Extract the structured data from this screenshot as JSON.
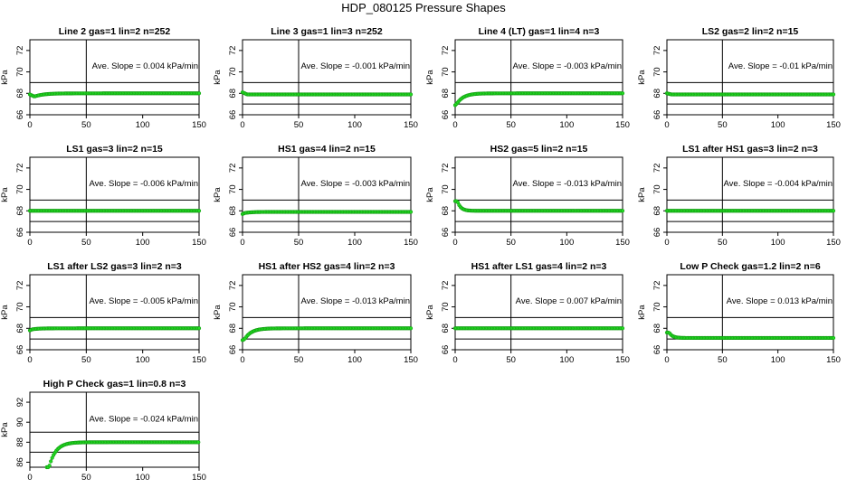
{
  "figure_title": "HDP_080125  Pressure Shapes",
  "chart_data": [
    {
      "type": "scatter",
      "title": "Line 2 gas=1 lin=2 n=252",
      "ylabel": "kPa",
      "xlim": [
        0,
        150
      ],
      "ylim": [
        66,
        73
      ],
      "yticks": [
        66,
        68,
        70,
        72
      ],
      "xticks": [
        0,
        50,
        100,
        150
      ],
      "hlines": [
        67,
        69
      ],
      "vline": 50,
      "annotation": "Ave. Slope = 0.004  kPa/min",
      "series": [
        {
          "name": "pressure",
          "shape": "dip",
          "start": 67.9,
          "base": 67.7,
          "end": 68.0,
          "x": [
            0,
            150
          ]
        }
      ]
    },
    {
      "type": "scatter",
      "title": "Line 3 gas=1 lin=3 n=252",
      "ylabel": "kPa",
      "xlim": [
        0,
        150
      ],
      "ylim": [
        66,
        73
      ],
      "yticks": [
        66,
        68,
        70,
        72
      ],
      "xticks": [
        0,
        50,
        100,
        150
      ],
      "hlines": [
        67,
        69
      ],
      "vline": 50,
      "annotation": "Ave. Slope = -0.001  kPa/min",
      "series": [
        {
          "name": "pressure",
          "shape": "flat",
          "start": 68.1,
          "base": 67.9,
          "end": 67.9,
          "x": [
            0,
            150
          ]
        }
      ]
    },
    {
      "type": "scatter",
      "title": "Line 4 (LT) gas=1 lin=4 n=3",
      "ylabel": "kPa",
      "xlim": [
        0,
        150
      ],
      "ylim": [
        66,
        73
      ],
      "yticks": [
        66,
        68,
        70,
        72
      ],
      "xticks": [
        0,
        50,
        100,
        150
      ],
      "hlines": [
        67,
        69
      ],
      "vline": 50,
      "annotation": "Ave. Slope = -0.003  kPa/min",
      "series": [
        {
          "name": "pressure",
          "shape": "rise",
          "start": 66.9,
          "base": 67.1,
          "end": 68.0,
          "x": [
            0,
            150
          ]
        }
      ]
    },
    {
      "type": "scatter",
      "title": "LS2 gas=2 lin=2 n=15",
      "ylabel": "kPa",
      "xlim": [
        0,
        150
      ],
      "ylim": [
        66,
        73
      ],
      "yticks": [
        66,
        68,
        70,
        72
      ],
      "xticks": [
        0,
        50,
        100,
        150
      ],
      "hlines": [
        67,
        69
      ],
      "vline": 50,
      "annotation": "Ave. Slope = -0.01  kPa/min",
      "series": [
        {
          "name": "pressure",
          "shape": "flat",
          "start": 68.0,
          "base": 68.0,
          "end": 67.9,
          "x": [
            0,
            150
          ]
        }
      ]
    },
    {
      "type": "scatter",
      "title": "LS1 gas=3 lin=2 n=15",
      "ylabel": "kPa",
      "xlim": [
        0,
        150
      ],
      "ylim": [
        66,
        73
      ],
      "yticks": [
        66,
        68,
        70,
        72
      ],
      "xticks": [
        0,
        50,
        100,
        150
      ],
      "hlines": [
        67,
        69
      ],
      "vline": 50,
      "annotation": "Ave. Slope = -0.006  kPa/min",
      "series": [
        {
          "name": "pressure",
          "shape": "flat",
          "start": 68.0,
          "base": 68.0,
          "end": 68.0,
          "x": [
            0,
            150
          ]
        }
      ]
    },
    {
      "type": "scatter",
      "title": "HS1 gas=4 lin=2 n=15",
      "ylabel": "kPa",
      "xlim": [
        0,
        150
      ],
      "ylim": [
        66,
        73
      ],
      "yticks": [
        66,
        68,
        70,
        72
      ],
      "xticks": [
        0,
        50,
        100,
        150
      ],
      "hlines": [
        67,
        69
      ],
      "vline": 50,
      "annotation": "Ave. Slope = -0.003  kPa/min",
      "series": [
        {
          "name": "pressure",
          "shape": "rise",
          "start": 67.7,
          "base": 67.8,
          "end": 67.9,
          "x": [
            0,
            150
          ]
        }
      ]
    },
    {
      "type": "scatter",
      "title": "HS2 gas=5 lin=2 n=15",
      "ylabel": "kPa",
      "xlim": [
        0,
        150
      ],
      "ylim": [
        66,
        73
      ],
      "yticks": [
        66,
        68,
        70,
        72
      ],
      "xticks": [
        0,
        50,
        100,
        150
      ],
      "hlines": [
        67,
        69
      ],
      "vline": 50,
      "annotation": "Ave. Slope = -0.013  kPa/min",
      "series": [
        {
          "name": "pressure",
          "shape": "fall",
          "start": 68.9,
          "base": 68.9,
          "end": 68.0,
          "x": [
            0,
            150
          ]
        }
      ]
    },
    {
      "type": "scatter",
      "title": "LS1 after HS1 gas=3 lin=2 n=3",
      "ylabel": "kPa",
      "xlim": [
        0,
        150
      ],
      "ylim": [
        66,
        73
      ],
      "yticks": [
        66,
        68,
        70,
        72
      ],
      "xticks": [
        0,
        50,
        100,
        150
      ],
      "hlines": [
        67,
        69
      ],
      "vline": 50,
      "annotation": "Ave. Slope = -0.004  kPa/min",
      "series": [
        {
          "name": "pressure",
          "shape": "flat",
          "start": 68.0,
          "base": 68.0,
          "end": 68.0,
          "x": [
            0,
            150
          ]
        }
      ]
    },
    {
      "type": "scatter",
      "title": "LS1 after LS2 gas=3 lin=2 n=3",
      "ylabel": "kPa",
      "xlim": [
        0,
        150
      ],
      "ylim": [
        66,
        73
      ],
      "yticks": [
        66,
        68,
        70,
        72
      ],
      "xticks": [
        0,
        50,
        100,
        150
      ],
      "hlines": [
        67,
        69
      ],
      "vline": 50,
      "annotation": "Ave. Slope = -0.005  kPa/min",
      "series": [
        {
          "name": "pressure",
          "shape": "rise",
          "start": 67.8,
          "base": 67.9,
          "end": 68.0,
          "x": [
            0,
            150
          ]
        }
      ]
    },
    {
      "type": "scatter",
      "title": "HS1 after HS2 gas=4 lin=2 n=3",
      "ylabel": "kPa",
      "xlim": [
        0,
        150
      ],
      "ylim": [
        66,
        73
      ],
      "yticks": [
        66,
        68,
        70,
        72
      ],
      "xticks": [
        0,
        50,
        100,
        150
      ],
      "hlines": [
        67,
        69
      ],
      "vline": 50,
      "annotation": "Ave. Slope = -0.013  kPa/min",
      "series": [
        {
          "name": "pressure",
          "shape": "rise",
          "start": 66.9,
          "base": 67.0,
          "end": 68.0,
          "x": [
            0,
            150
          ]
        }
      ]
    },
    {
      "type": "scatter",
      "title": "HS1 after LS1 gas=4 lin=2 n=3",
      "ylabel": "kPa",
      "xlim": [
        0,
        150
      ],
      "ylim": [
        66,
        73
      ],
      "yticks": [
        66,
        68,
        70,
        72
      ],
      "xticks": [
        0,
        50,
        100,
        150
      ],
      "hlines": [
        67,
        69
      ],
      "vline": 50,
      "annotation": "Ave. Slope = 0.007  kPa/min",
      "series": [
        {
          "name": "pressure",
          "shape": "flat",
          "start": 68.0,
          "base": 68.0,
          "end": 68.0,
          "x": [
            0,
            150
          ]
        }
      ]
    },
    {
      "type": "scatter",
      "title": "Low P Check gas=1.2 lin=2 n=6",
      "ylabel": "kPa",
      "xlim": [
        0,
        150
      ],
      "ylim": [
        66,
        73
      ],
      "yticks": [
        66,
        68,
        70,
        72
      ],
      "xticks": [
        0,
        50,
        100,
        150
      ],
      "hlines": [
        67,
        69
      ],
      "vline": 50,
      "annotation": "Ave. Slope = 0.013  kPa/min",
      "series": [
        {
          "name": "pressure",
          "shape": "fall",
          "start": 67.6,
          "base": 67.6,
          "end": 67.1,
          "x": [
            0,
            150
          ]
        }
      ]
    },
    {
      "type": "scatter",
      "title": "High P Check gas=1 lin=0.8 n=3",
      "ylabel": "kPa",
      "xlim": [
        0,
        150
      ],
      "ylim": [
        85.5,
        93
      ],
      "yticks": [
        86,
        88,
        90,
        92
      ],
      "xticks": [
        0,
        50,
        100,
        150
      ],
      "hlines": [
        87,
        89
      ],
      "vline": 50,
      "annotation": "Ave. Slope = -0.024  kPa/min",
      "series": [
        {
          "name": "pressure",
          "shape": "rise",
          "start": 85.5,
          "base": 85.5,
          "end": 88.0,
          "x": [
            15,
            150
          ]
        }
      ]
    }
  ]
}
